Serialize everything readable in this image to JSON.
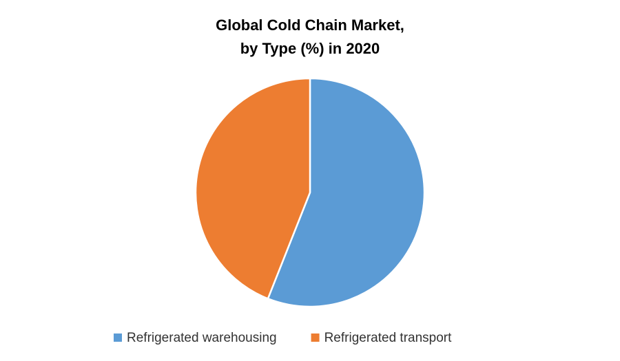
{
  "chart_data": {
    "type": "pie",
    "title": [
      "Global Cold Chain Market,",
      "by Type (%) in 2020"
    ],
    "categories": [
      "Refrigerated warehousing",
      "Refrigerated transport"
    ],
    "values": [
      56,
      44
    ],
    "colors": [
      "#5b9bd5",
      "#ed7d31"
    ],
    "legend": "bottom"
  }
}
